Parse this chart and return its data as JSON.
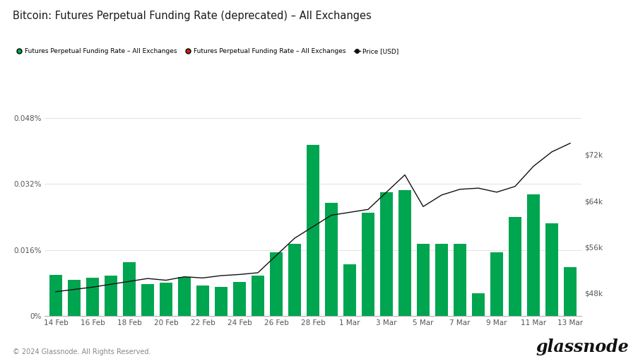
{
  "title": "Bitcoin: Futures Perpetual Funding Rate (deprecated) – All Exchanges",
  "legend_labels": [
    "Futures Perpetual Funding Rate – All Exchanges",
    "Futures Perpetual Funding Rate – All Exchanges",
    "Price [USD]"
  ],
  "legend_colors": [
    "#00a550",
    "#cc2200",
    "#111111"
  ],
  "x_labels": [
    "14 Feb",
    "16 Feb",
    "18 Feb",
    "20 Feb",
    "22 Feb",
    "24 Feb",
    "26 Feb",
    "28 Feb",
    "1 Mar",
    "3 Mar",
    "5 Mar",
    "7 Mar",
    "9 Mar",
    "11 Mar",
    "13 Mar"
  ],
  "bar_values": [
    0.01,
    0.0088,
    0.0092,
    0.0098,
    0.013,
    0.0078,
    0.008,
    0.0095,
    0.0073,
    0.007,
    0.0083,
    0.0098,
    0.0155,
    0.0175,
    0.0415,
    0.0275,
    0.0125,
    0.025,
    0.03,
    0.0305,
    0.0175,
    0.0175,
    0.0175,
    0.0055,
    0.0155,
    0.024,
    0.0295,
    0.0225,
    0.0118
  ],
  "price_values": [
    48200,
    48600,
    49000,
    49500,
    50000,
    50500,
    50200,
    50800,
    50600,
    51000,
    51200,
    51500,
    54500,
    57500,
    59500,
    61500,
    62000,
    62500,
    65500,
    68500,
    63000,
    65000,
    66000,
    66200,
    65500,
    66500,
    70000,
    72500,
    74000
  ],
  "bar_color": "#00a550",
  "price_line_color": "#111111",
  "background_color": "#ffffff",
  "grid_color": "#d8d8d8",
  "ylim_left": [
    0,
    0.054
  ],
  "ylim_right": [
    44000,
    82667
  ],
  "yticks_left": [
    0,
    0.016,
    0.032,
    0.048
  ],
  "ytick_labels_left": [
    "0%",
    "0.016%",
    "0.032%",
    "0.048%"
  ],
  "yticks_right": [
    48000,
    56000,
    64000,
    72000
  ],
  "ytick_labels_right": [
    "$48k",
    "$56k",
    "$64k",
    "$72k"
  ],
  "footer_left": "© 2024 Glassnode. All Rights Reserved.",
  "footer_right": "glassnode"
}
